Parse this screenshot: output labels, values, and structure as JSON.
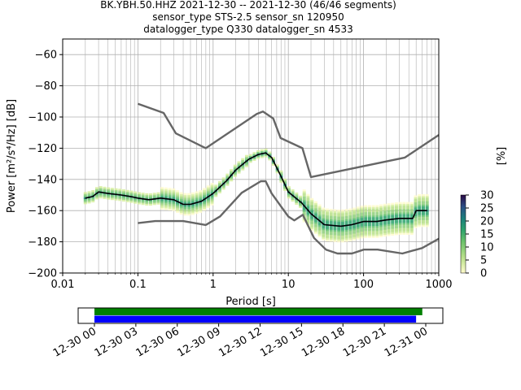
{
  "title": {
    "line1": "BK.YBH.50.HHZ   2021-12-30 -- 2021-12-30  (46/46 segments)",
    "line2": "sensor_type STS-2.5 sensor_sn 120950",
    "line3": "datalogger_type Q330 datalogger_sn 4533"
  },
  "chart_data": {
    "type": "line",
    "title": "BK.YBH.50.HHZ   2021-12-30 -- 2021-12-30  (46/46 segments)",
    "xlabel": "Period [s]",
    "ylabel": "Power [m²/s⁴/Hz] [dB]",
    "xscale": "log",
    "xlim": [
      0.01,
      1000
    ],
    "ylim": [
      -200,
      -50
    ],
    "x_tick_labels": [
      "0.01",
      "0.1",
      "1",
      "10",
      "100",
      "1000"
    ],
    "y_tick_labels": [
      "−60",
      "−80",
      "−100",
      "−120",
      "−140",
      "−160",
      "−180",
      "−200"
    ],
    "grid": true,
    "colorbar": {
      "label": "[%]",
      "ticks": [
        "0",
        "5",
        "10",
        "15",
        "20",
        "25",
        "30"
      ],
      "range": [
        0,
        30
      ]
    },
    "series": [
      {
        "role": "noise-model-high",
        "color": "#666666",
        "x": [
          0.1,
          0.22,
          0.32,
          0.8,
          3.8,
          4.6,
          6.3,
          7.9,
          15.4,
          20,
          354.8,
          1000
        ],
        "values": [
          -91.5,
          -97.4,
          -110.5,
          -120,
          -98,
          -96.5,
          -101,
          -113.5,
          -120,
          -138.5,
          -126,
          -111.5
        ]
      },
      {
        "role": "noise-model-low",
        "color": "#666666",
        "x": [
          0.1,
          0.17,
          0.4,
          0.8,
          1.24,
          2.4,
          4.3,
          5,
          6,
          10,
          12,
          15.6,
          21.9,
          31.6,
          45,
          70,
          101,
          154,
          328,
          600,
          1000
        ],
        "values": [
          -168,
          -166.7,
          -166.7,
          -169.2,
          -163.7,
          -148.6,
          -141.2,
          -141.2,
          -149,
          -163.8,
          -166.3,
          -162.7,
          -177.5,
          -185,
          -187.5,
          -187.5,
          -185,
          -185,
          -187.5,
          -184,
          -178
        ]
      },
      {
        "role": "mode",
        "color": "#000000",
        "x": [
          0.02,
          0.025,
          0.03,
          0.04,
          0.06,
          0.08,
          0.1,
          0.14,
          0.2,
          0.3,
          0.4,
          0.5,
          0.7,
          1,
          1.5,
          2,
          3,
          4,
          5,
          6,
          8,
          10,
          15,
          20,
          30,
          50,
          70,
          100,
          150,
          200,
          300,
          450,
          500,
          700
        ],
        "values": [
          -152,
          -151,
          -148,
          -149,
          -150,
          -151,
          -152,
          -153,
          -152,
          -153,
          -156,
          -156,
          -154,
          -149,
          -141,
          -134,
          -127,
          -124,
          -123,
          -126,
          -138,
          -148,
          -155,
          -162,
          -169,
          -170,
          -169,
          -167,
          -167,
          -166,
          -165,
          -165,
          -160,
          -160
        ]
      }
    ],
    "colorbar_x_tick_labels": [
      "12-30 00",
      "12-30 03",
      "12-30 06",
      "12-30 09",
      "12-30 12",
      "12-30 15",
      "12-30 18",
      "12-30 21",
      "12-31 00"
    ],
    "data_availability": [
      {
        "color": "#008000",
        "start_hour": 0,
        "end_hour": 23.75
      },
      {
        "color": "#0000ff",
        "start_hour": 0,
        "end_hour": 23.3
      }
    ]
  }
}
